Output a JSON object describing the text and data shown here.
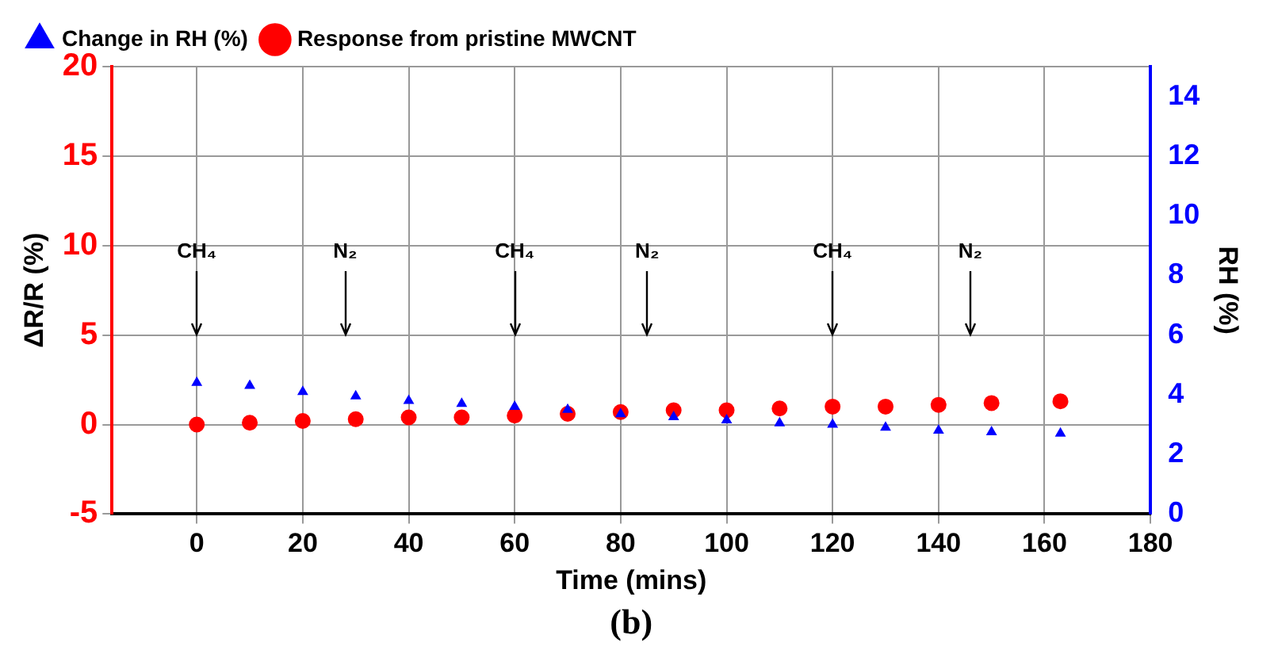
{
  "chart_data": {
    "type": "scatter",
    "xlabel": "Time (mins)",
    "ylabel": "ΔR/R (%)",
    "y2label": "RH (%)",
    "xlim": [
      -16,
      180
    ],
    "xticks": [
      0,
      20,
      40,
      60,
      80,
      100,
      120,
      140,
      160,
      180
    ],
    "ylim": [
      -5,
      20
    ],
    "yticks": [
      -5,
      0,
      5,
      10,
      15,
      20
    ],
    "y2lim": [
      0,
      15
    ],
    "y2ticks": [
      0,
      2,
      4,
      6,
      8,
      10,
      12,
      14
    ],
    "grid": true,
    "legend": "top left",
    "series": [
      {
        "name": "Response from pristine MWCNT",
        "color": "#ff0000",
        "marker": "circle",
        "x": [
          0,
          10,
          20,
          30,
          40,
          50,
          60,
          70,
          80,
          90,
          100,
          110,
          120,
          130,
          140,
          150,
          163
        ],
        "values": [
          0,
          0.1,
          0.2,
          0.3,
          0.4,
          0.4,
          0.5,
          0.6,
          0.7,
          0.8,
          0.8,
          0.9,
          1.0,
          1.0,
          1.1,
          1.2,
          1.3
        ]
      },
      {
        "name": "Change in RH (%)",
        "color": "#0000ff",
        "marker": "triangle",
        "axis": "y2",
        "x": [
          0,
          10,
          20,
          30,
          40,
          50,
          60,
          70,
          80,
          90,
          100,
          110,
          120,
          130,
          140,
          150,
          163
        ],
        "values": [
          4.4,
          4.3,
          4.1,
          3.95,
          3.8,
          3.7,
          3.6,
          3.5,
          3.35,
          3.25,
          3.15,
          3.05,
          3.0,
          2.9,
          2.8,
          2.75,
          2.7
        ]
      }
    ],
    "ref_lines": [
      {
        "axis": "x",
        "value": 0,
        "label": "CH₄",
        "color": "#000000"
      },
      {
        "axis": "x",
        "value": 28,
        "label": "N₂",
        "color": "#000000"
      },
      {
        "axis": "x",
        "value": 60,
        "label": "CH₄",
        "color": "#000000"
      },
      {
        "axis": "x",
        "value": 85,
        "label": "N₂",
        "color": "#000000"
      },
      {
        "axis": "x",
        "value": 120,
        "label": "CH₄",
        "color": "#000000"
      },
      {
        "axis": "x",
        "value": 146,
        "label": "N₂",
        "color": "#000000"
      }
    ],
    "annotations": [
      "(b)"
    ]
  }
}
